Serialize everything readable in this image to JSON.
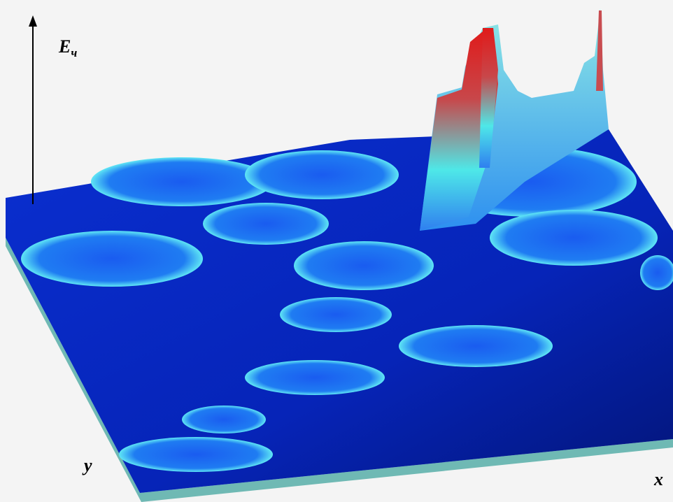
{
  "labels": {
    "energy": "E",
    "energy_subscript": "ч",
    "y": "y",
    "x": "x"
  }
}
